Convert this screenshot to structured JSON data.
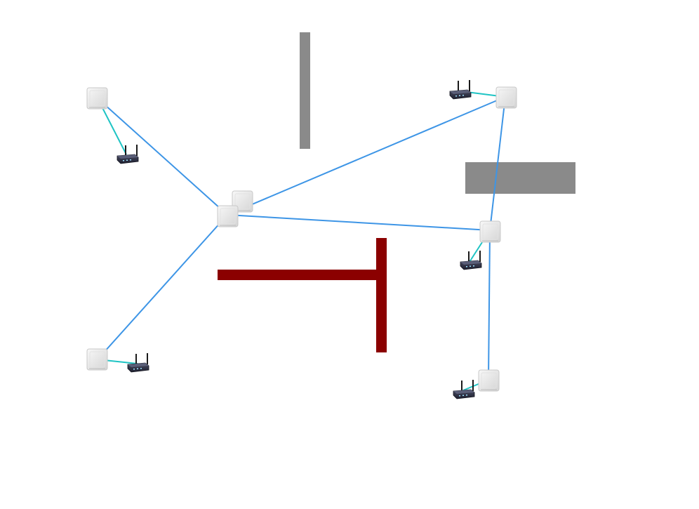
{
  "diagram": {
    "type": "wireless-mesh-network",
    "colors": {
      "background": "#ffffff",
      "backhaul_link": "#3d95e6",
      "access_link": "#1fc4c4",
      "wall_gray": "#8a8a8a",
      "wall_dark_red": "#8b0000",
      "node_fill": "#ececec",
      "router_body": "#2f3142"
    },
    "node_icon": "mesh-node-icon",
    "router_icon": "wifi-router-icon"
  }
}
